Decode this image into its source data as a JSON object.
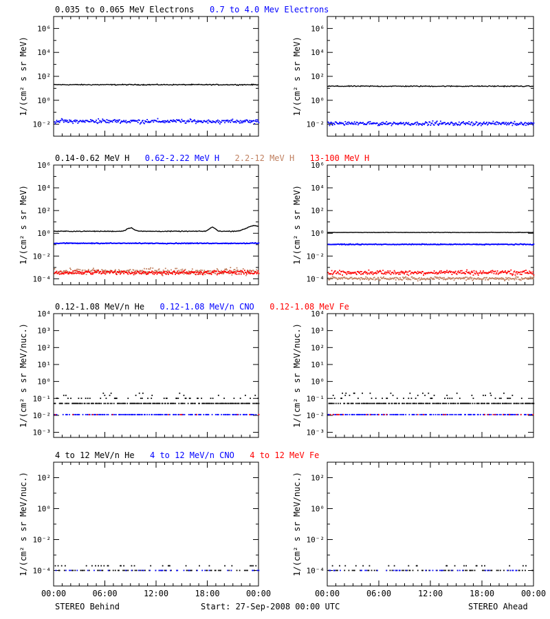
{
  "colors": {
    "black": "#000000",
    "blue": "#0000ff",
    "tan": "#c08060",
    "red": "#ff0000"
  },
  "footer": {
    "left": "STEREO Behind",
    "center": "Start: 27-Sep-2008 00:00 UTC",
    "right": "STEREO Ahead"
  },
  "chart_data": [
    {
      "type": "scatter",
      "row": 1,
      "spacecraft": "Behind",
      "legend": [
        {
          "text": "0.035 to 0.065 MeV Electrons",
          "color": "black"
        },
        {
          "text": "0.7 to 4.0 Mev Electrons",
          "color": "blue"
        }
      ],
      "ylabel": "1/(cm² s sr MeV)",
      "yscale": "log",
      "ylim": [
        0.001,
        10000000
      ],
      "ytick_exponents": [
        -2,
        0,
        2,
        4,
        6
      ],
      "xlim_hours": [
        0,
        24
      ],
      "xticks": [
        "00:00",
        "06:00",
        "12:00",
        "18:00",
        "00:00"
      ],
      "series": [
        {
          "color": "black",
          "style": "line",
          "level": 20,
          "spread": 0.06,
          "jitter": 0.04,
          "bumps": []
        },
        {
          "color": "blue",
          "style": "dots",
          "level": 0.02,
          "spread": 0.2,
          "jitter": 0.25,
          "bumps": []
        }
      ]
    },
    {
      "type": "scatter",
      "row": 1,
      "spacecraft": "Ahead",
      "ylabel": "1/(cm² s sr MeV)",
      "yscale": "log",
      "ylim": [
        0.001,
        10000000
      ],
      "ytick_exponents": [
        -2,
        0,
        2,
        4,
        6
      ],
      "xlim_hours": [
        0,
        24
      ],
      "xticks": [
        "00:00",
        "06:00",
        "12:00",
        "18:00",
        "00:00"
      ],
      "series": [
        {
          "color": "black",
          "style": "line",
          "level": 15,
          "spread": 0.06,
          "jitter": 0.04,
          "bumps": []
        },
        {
          "color": "blue",
          "style": "dots",
          "level": 0.013,
          "spread": 0.2,
          "jitter": 0.25,
          "bumps": []
        }
      ]
    },
    {
      "type": "scatter",
      "row": 2,
      "spacecraft": "Behind",
      "legend": [
        {
          "text": "0.14-0.62 MeV H",
          "color": "black"
        },
        {
          "text": "0.62-2.22 MeV H",
          "color": "blue"
        },
        {
          "text": "2.2-12 MeV H",
          "color": "tan"
        },
        {
          "text": "13-100 MeV H",
          "color": "red"
        }
      ],
      "ylabel": "1/(cm² s sr MeV)",
      "yscale": "log",
      "ylim": [
        3e-05,
        1000000
      ],
      "ytick_exponents": [
        -4,
        -2,
        0,
        2,
        4,
        6
      ],
      "xlim_hours": [
        0,
        24
      ],
      "xticks": [
        "00:00",
        "06:00",
        "12:00",
        "18:00",
        "00:00"
      ],
      "series": [
        {
          "color": "black",
          "style": "line",
          "level": 1.5,
          "spread": 0.05,
          "jitter": 0.03,
          "bumps": [
            {
              "t": 9.0,
              "h": 0.3,
              "w": 0.6
            },
            {
              "t": 18.6,
              "h": 0.35,
              "w": 0.5
            },
            {
              "t": 23.5,
              "h": 0.5,
              "w": 1.2
            }
          ]
        },
        {
          "color": "blue",
          "style": "dots",
          "level": 0.15,
          "spread": 0.05,
          "jitter": 0.05,
          "bumps": []
        },
        {
          "color": "tan",
          "style": "dots",
          "level": 0.0005,
          "spread": 0.35,
          "jitter": 0.3,
          "bumps": []
        },
        {
          "color": "red",
          "style": "dots",
          "level": 0.0004,
          "spread": 0.25,
          "jitter": 0.25,
          "bumps": []
        }
      ]
    },
    {
      "type": "scatter",
      "row": 2,
      "spacecraft": "Ahead",
      "ylabel": "1/(cm² s sr MeV)",
      "yscale": "log",
      "ylim": [
        3e-05,
        1000000
      ],
      "ytick_exponents": [
        -4,
        -2,
        0,
        2,
        4,
        6
      ],
      "xlim_hours": [
        0,
        24
      ],
      "xticks": [
        "00:00",
        "06:00",
        "12:00",
        "18:00",
        "00:00"
      ],
      "series": [
        {
          "color": "black",
          "style": "line",
          "level": 1.2,
          "spread": 0.03,
          "jitter": 0.02,
          "bumps": []
        },
        {
          "color": "blue",
          "style": "dots",
          "level": 0.12,
          "spread": 0.05,
          "jitter": 0.05,
          "bumps": []
        },
        {
          "color": "tan",
          "style": "dots",
          "level": 0.00012,
          "spread": 0.2,
          "jitter": 0.2,
          "bumps": []
        },
        {
          "color": "red",
          "style": "dots",
          "level": 0.0004,
          "spread": 0.25,
          "jitter": 0.25,
          "bumps": []
        }
      ]
    },
    {
      "type": "scatter",
      "row": 3,
      "spacecraft": "Behind",
      "legend": [
        {
          "text": "0.12-1.08 MeV/n He",
          "color": "black"
        },
        {
          "text": "0.12-1.08 MeV/n CNO",
          "color": "blue"
        },
        {
          "text": "0.12-1.08 MeV Fe",
          "color": "red"
        }
      ],
      "ylabel": "1/(cm² s sr MeV/nuc.)",
      "yscale": "log",
      "ylim": [
        0.0005,
        10000
      ],
      "ytick_exponents": [
        -3,
        -2,
        -1,
        0,
        1,
        2,
        3,
        4
      ],
      "xlim_hours": [
        0,
        24
      ],
      "xticks": [
        "00:00",
        "06:00",
        "12:00",
        "18:00",
        "00:00"
      ],
      "series": [
        {
          "color": "black",
          "style": "quantized",
          "level": 0.05,
          "levels": [
            0.05,
            0.1,
            0.15,
            0.2
          ],
          "density": 0.8
        },
        {
          "color": "blue",
          "style": "quantized",
          "level": 0.011,
          "levels": [
            0.011
          ],
          "density": 0.55
        },
        {
          "color": "red",
          "style": "quantized",
          "level": 0.011,
          "levels": [
            0.011
          ],
          "density": 0.06
        }
      ]
    },
    {
      "type": "scatter",
      "row": 3,
      "spacecraft": "Ahead",
      "ylabel": "1/(cm² s sr MeV/nuc.)",
      "yscale": "log",
      "ylim": [
        0.0005,
        10000
      ],
      "ytick_exponents": [
        -3,
        -2,
        -1,
        0,
        1,
        2,
        3,
        4
      ],
      "xlim_hours": [
        0,
        24
      ],
      "xticks": [
        "00:00",
        "06:00",
        "12:00",
        "18:00",
        "00:00"
      ],
      "series": [
        {
          "color": "black",
          "style": "quantized",
          "level": 0.05,
          "levels": [
            0.05,
            0.1,
            0.15,
            0.2
          ],
          "density": 0.8
        },
        {
          "color": "blue",
          "style": "quantized",
          "level": 0.011,
          "levels": [
            0.011
          ],
          "density": 0.55
        },
        {
          "color": "red",
          "style": "quantized",
          "level": 0.011,
          "levels": [
            0.011
          ],
          "density": 0.06
        }
      ]
    },
    {
      "type": "scatter",
      "row": 4,
      "spacecraft": "Behind",
      "legend": [
        {
          "text": "4 to 12 MeV/n He",
          "color": "black"
        },
        {
          "text": "4 to 12 MeV/n CNO",
          "color": "blue"
        },
        {
          "text": "4 to 12 MeV Fe",
          "color": "red"
        }
      ],
      "ylabel": "1/(cm² s sr MeV/nuc.)",
      "yscale": "log",
      "ylim": [
        1e-05,
        1000
      ],
      "ytick_exponents": [
        -4,
        -2,
        0,
        2
      ],
      "xlim_hours": [
        0,
        24
      ],
      "xticks": [
        "00:00",
        "06:00",
        "12:00",
        "18:00",
        "00:00"
      ],
      "series": [
        {
          "color": "black",
          "style": "quantized",
          "level": 0.0001,
          "levels": [
            0.0001,
            0.0002
          ],
          "density": 0.35
        },
        {
          "color": "blue",
          "style": "quantized",
          "level": 0.0001,
          "levels": [
            0.0001
          ],
          "density": 0.12
        }
      ]
    },
    {
      "type": "scatter",
      "row": 4,
      "spacecraft": "Ahead",
      "ylabel": "1/(cm² s sr MeV/nuc.)",
      "yscale": "log",
      "ylim": [
        1e-05,
        1000
      ],
      "ytick_exponents": [
        -4,
        -2,
        0,
        2
      ],
      "xlim_hours": [
        0,
        24
      ],
      "xticks": [
        "00:00",
        "06:00",
        "12:00",
        "18:00",
        "00:00"
      ],
      "series": [
        {
          "color": "black",
          "style": "quantized",
          "level": 0.0001,
          "levels": [
            0.0001,
            0.0002
          ],
          "density": 0.35
        },
        {
          "color": "blue",
          "style": "quantized",
          "level": 0.0001,
          "levels": [
            0.0001
          ],
          "density": 0.12
        }
      ]
    }
  ]
}
